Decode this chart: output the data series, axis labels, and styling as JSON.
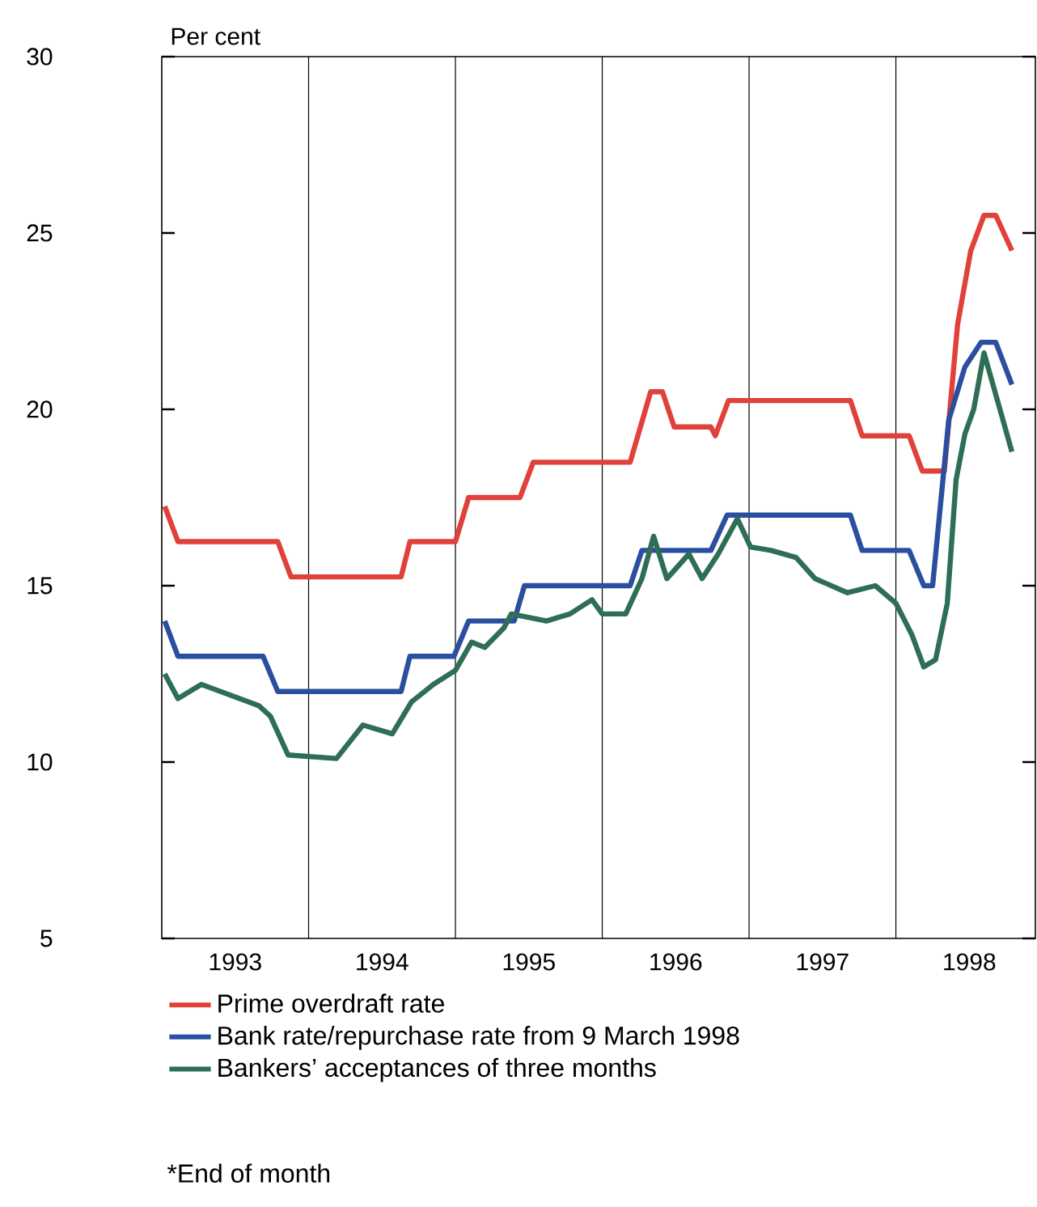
{
  "chart_data": {
    "type": "line",
    "ylabel": "Per cent",
    "xlim": [
      1993,
      1998.95
    ],
    "ylim": [
      5,
      30
    ],
    "yticks": [
      5,
      10,
      15,
      20,
      25,
      30
    ],
    "xticks": [
      {
        "value": 1993.5,
        "label": "1993"
      },
      {
        "value": 1994.5,
        "label": "1994"
      },
      {
        "value": 1995.5,
        "label": "1995"
      },
      {
        "value": 1996.5,
        "label": "1996"
      },
      {
        "value": 1997.5,
        "label": "1997"
      },
      {
        "value": 1998.5,
        "label": "1998"
      },
      {
        "value": 1994,
        "label": null
      },
      {
        "value": 1995,
        "label": null
      },
      {
        "value": 1996,
        "label": null
      },
      {
        "value": 1997,
        "label": null
      },
      {
        "value": 1998,
        "label": null
      }
    ],
    "grid": "x",
    "legend": "bottom",
    "marker": "none",
    "line_style": "solid",
    "annotations": [
      "*End of month"
    ],
    "series": [
      {
        "name": "Prime overdraft rate",
        "color": "#e0413a",
        "x": [
          1993.02,
          1993.11,
          1993.79,
          1993.88,
          1994.63,
          1994.69,
          1995.0,
          1995.09,
          1995.44,
          1995.53,
          1996.19,
          1996.33,
          1996.41,
          1996.49,
          1996.74,
          1996.77,
          1996.86,
          1997.69,
          1997.77,
          1998.09,
          1998.18,
          1998.33,
          1998.42,
          1998.51,
          1998.6,
          1998.68,
          1998.79
        ],
        "values": [
          17.25,
          16.25,
          16.25,
          15.25,
          15.25,
          16.25,
          16.25,
          17.5,
          17.5,
          18.5,
          18.5,
          20.5,
          20.5,
          19.5,
          19.5,
          19.25,
          20.25,
          20.25,
          19.25,
          19.25,
          18.25,
          18.25,
          22.4,
          24.5,
          25.5,
          25.5,
          24.5
        ]
      },
      {
        "name": "Bank rate/repurchase rate from 9 March 1998",
        "color": "#2a4fa0",
        "x": [
          1993.02,
          1993.11,
          1993.69,
          1993.79,
          1994.63,
          1994.69,
          1994.99,
          1995.09,
          1995.4,
          1995.47,
          1996.19,
          1996.27,
          1996.74,
          1996.85,
          1997.69,
          1997.77,
          1998.09,
          1998.19,
          1998.25,
          1998.36,
          1998.47,
          1998.58,
          1998.68,
          1998.79
        ],
        "values": [
          14,
          13,
          13,
          12,
          12,
          13,
          13,
          14,
          14,
          15,
          15,
          16,
          16,
          17,
          17,
          16,
          16,
          15,
          15,
          19.7,
          21.2,
          21.9,
          21.9,
          20.7
        ]
      },
      {
        "name": "Bankers’ acceptances of three months",
        "color": "#2e6e55",
        "x": [
          1993.02,
          1993.11,
          1993.27,
          1993.53,
          1993.66,
          1993.74,
          1993.86,
          1994.19,
          1994.37,
          1994.57,
          1994.7,
          1994.85,
          1995.0,
          1995.11,
          1995.2,
          1995.33,
          1995.38,
          1995.62,
          1995.78,
          1995.93,
          1996.0,
          1996.16,
          1996.27,
          1996.35,
          1996.44,
          1996.59,
          1996.68,
          1996.79,
          1996.92,
          1997.01,
          1997.15,
          1997.32,
          1997.45,
          1997.67,
          1997.86,
          1998.0,
          1998.11,
          1998.19,
          1998.27,
          1998.35,
          1998.41,
          1998.47,
          1998.53,
          1998.6,
          1998.79
        ],
        "values": [
          12.5,
          11.8,
          12.2,
          11.8,
          11.6,
          11.3,
          10.2,
          10.1,
          11.05,
          10.8,
          11.7,
          12.2,
          12.6,
          13.4,
          13.25,
          13.8,
          14.2,
          14.0,
          14.2,
          14.6,
          14.2,
          14.2,
          15.2,
          16.4,
          15.2,
          15.9,
          15.2,
          15.9,
          16.9,
          16.1,
          16.0,
          15.8,
          15.2,
          14.8,
          15.0,
          14.5,
          13.6,
          12.7,
          12.9,
          14.5,
          18.0,
          19.3,
          20.0,
          21.6,
          18.8
        ]
      }
    ]
  }
}
